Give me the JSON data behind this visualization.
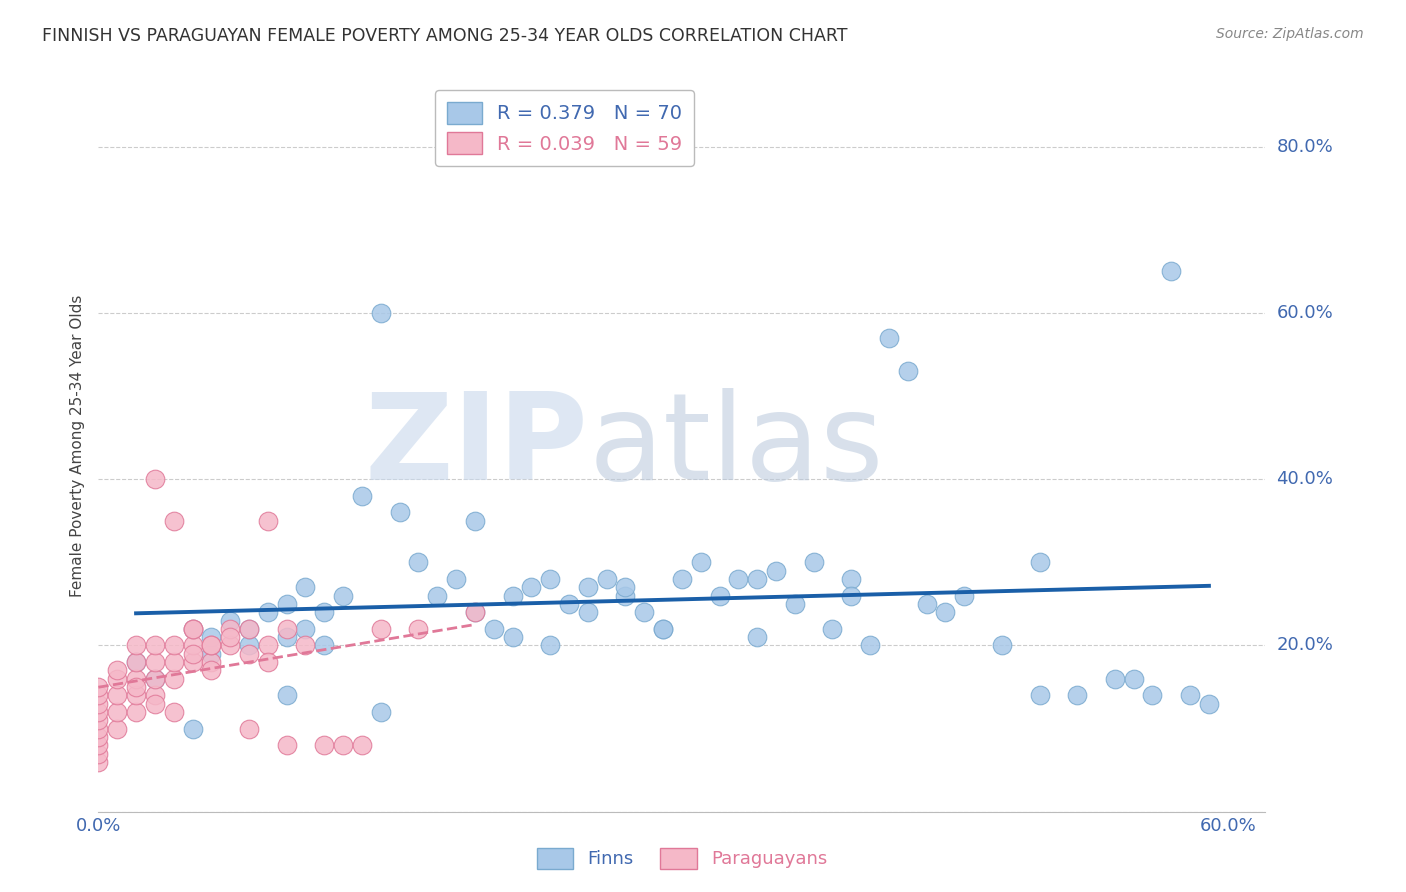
{
  "title": "FINNISH VS PARAGUAYAN FEMALE POVERTY AMONG 25-34 YEAR OLDS CORRELATION CHART",
  "source": "Source: ZipAtlas.com",
  "ylabel": "Female Poverty Among 25-34 Year Olds",
  "xlim": [
    0.0,
    0.62
  ],
  "ylim": [
    0.0,
    0.88
  ],
  "xticks": [
    0.0,
    0.1,
    0.2,
    0.3,
    0.4,
    0.5,
    0.6
  ],
  "yticks": [
    0.0,
    0.2,
    0.4,
    0.6,
    0.8
  ],
  "ytick_right_labels": [
    "",
    "20.0%",
    "40.0%",
    "60.0%",
    "80.0%"
  ],
  "xtick_labels": [
    "0.0%",
    "",
    "",
    "",
    "",
    "",
    "60.0%"
  ],
  "finn_color": "#a8c8e8",
  "finn_edge_color": "#7aaacf",
  "para_color": "#f5b8c8",
  "para_edge_color": "#e07898",
  "finn_R": 0.379,
  "finn_N": 70,
  "para_R": 0.039,
  "para_N": 59,
  "background_color": "#ffffff",
  "grid_color": "#cccccc",
  "finn_scatter_x": [
    0.02,
    0.03,
    0.05,
    0.06,
    0.06,
    0.07,
    0.08,
    0.08,
    0.09,
    0.1,
    0.1,
    0.11,
    0.11,
    0.12,
    0.12,
    0.13,
    0.14,
    0.15,
    0.16,
    0.17,
    0.18,
    0.19,
    0.2,
    0.21,
    0.22,
    0.23,
    0.24,
    0.25,
    0.26,
    0.27,
    0.28,
    0.29,
    0.3,
    0.31,
    0.32,
    0.33,
    0.34,
    0.35,
    0.36,
    0.37,
    0.38,
    0.39,
    0.4,
    0.41,
    0.42,
    0.43,
    0.44,
    0.46,
    0.48,
    0.5,
    0.52,
    0.54,
    0.56,
    0.57,
    0.58,
    0.59,
    0.2,
    0.22,
    0.24,
    0.26,
    0.28,
    0.3,
    0.35,
    0.4,
    0.45,
    0.5,
    0.55,
    0.1,
    0.15,
    0.05
  ],
  "finn_scatter_y": [
    0.18,
    0.16,
    0.22,
    0.19,
    0.21,
    0.23,
    0.2,
    0.22,
    0.24,
    0.21,
    0.25,
    0.22,
    0.27,
    0.24,
    0.2,
    0.26,
    0.38,
    0.6,
    0.36,
    0.3,
    0.26,
    0.28,
    0.24,
    0.22,
    0.26,
    0.27,
    0.2,
    0.25,
    0.24,
    0.28,
    0.26,
    0.24,
    0.22,
    0.28,
    0.3,
    0.26,
    0.28,
    0.21,
    0.29,
    0.25,
    0.3,
    0.22,
    0.28,
    0.2,
    0.57,
    0.53,
    0.25,
    0.26,
    0.2,
    0.14,
    0.14,
    0.16,
    0.14,
    0.65,
    0.14,
    0.13,
    0.35,
    0.21,
    0.28,
    0.27,
    0.27,
    0.22,
    0.28,
    0.26,
    0.24,
    0.3,
    0.16,
    0.14,
    0.12,
    0.1
  ],
  "para_scatter_x": [
    0.0,
    0.0,
    0.0,
    0.0,
    0.0,
    0.0,
    0.0,
    0.0,
    0.0,
    0.0,
    0.01,
    0.01,
    0.01,
    0.01,
    0.02,
    0.02,
    0.02,
    0.02,
    0.02,
    0.03,
    0.03,
    0.03,
    0.03,
    0.04,
    0.04,
    0.04,
    0.05,
    0.05,
    0.05,
    0.06,
    0.06,
    0.07,
    0.07,
    0.08,
    0.08,
    0.09,
    0.09,
    0.1,
    0.1,
    0.11,
    0.12,
    0.13,
    0.14,
    0.15,
    0.17,
    0.2,
    0.03,
    0.04,
    0.05,
    0.06,
    0.07,
    0.08,
    0.09,
    0.01,
    0.02,
    0.03,
    0.04,
    0.05,
    0.06
  ],
  "para_scatter_y": [
    0.06,
    0.07,
    0.08,
    0.09,
    0.1,
    0.11,
    0.12,
    0.13,
    0.14,
    0.15,
    0.1,
    0.12,
    0.14,
    0.16,
    0.12,
    0.14,
    0.16,
    0.18,
    0.2,
    0.14,
    0.16,
    0.18,
    0.2,
    0.16,
    0.18,
    0.2,
    0.18,
    0.2,
    0.22,
    0.18,
    0.2,
    0.2,
    0.22,
    0.22,
    0.1,
    0.2,
    0.35,
    0.22,
    0.08,
    0.2,
    0.08,
    0.08,
    0.08,
    0.22,
    0.22,
    0.24,
    0.4,
    0.35,
    0.22,
    0.2,
    0.21,
    0.19,
    0.18,
    0.17,
    0.15,
    0.13,
    0.12,
    0.19,
    0.17
  ]
}
